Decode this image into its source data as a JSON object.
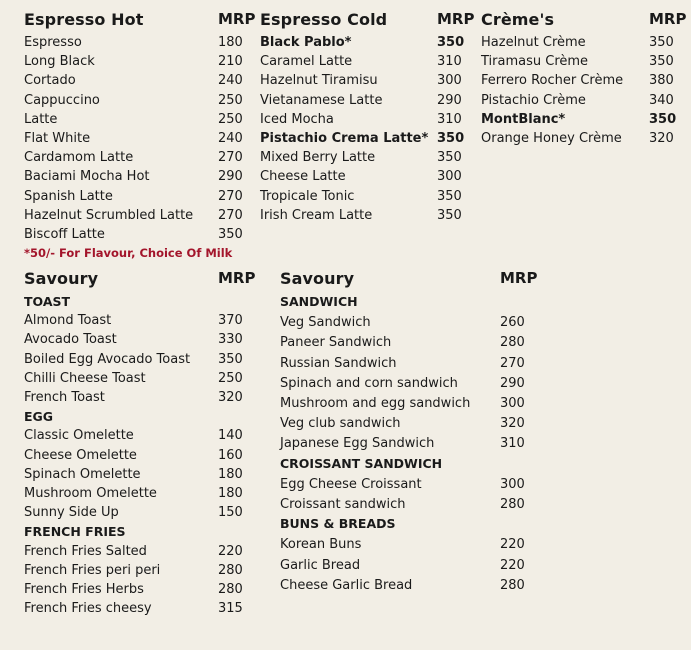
{
  "espresso_hot": {
    "title": "Espresso Hot",
    "mrp": "MRP",
    "items": [
      {
        "name": "Espresso",
        "price": "180"
      },
      {
        "name": "Long Black",
        "price": "210"
      },
      {
        "name": "Cortado",
        "price": "240"
      },
      {
        "name": "Cappuccino",
        "price": "250"
      },
      {
        "name": "Latte",
        "price": "250"
      },
      {
        "name": "Flat White",
        "price": "240"
      },
      {
        "name": "Cardamom Latte",
        "price": "270"
      },
      {
        "name": "Baciami Mocha Hot",
        "price": "290"
      },
      {
        "name": "Spanish Latte",
        "price": "270"
      },
      {
        "name": "Hazelnut Scrumbled Latte",
        "price": "270"
      },
      {
        "name": "Biscoff Latte",
        "price": "350"
      }
    ],
    "note": "*50/- For Flavour, Choice Of Milk"
  },
  "espresso_cold": {
    "title": "Espresso Cold",
    "mrp": "MRP",
    "items": [
      {
        "name": "Black Pablo*",
        "price": "350",
        "bold": true
      },
      {
        "name": "Caramel Latte",
        "price": "310"
      },
      {
        "name": "Hazelnut Tiramisu",
        "price": "300"
      },
      {
        "name": "Vietanamese Latte",
        "price": "290"
      },
      {
        "name": "Iced Mocha",
        "price": "310"
      },
      {
        "name": "Pistachio Crema Latte*",
        "price": "350",
        "bold": true
      },
      {
        "name": "Mixed Berry Latte",
        "price": "350"
      },
      {
        "name": "Cheese Latte",
        "price": "300"
      },
      {
        "name": "Tropicale Tonic",
        "price": "350"
      },
      {
        "name": "Irish Cream Latte",
        "price": "350"
      }
    ]
  },
  "cremes": {
    "title": "Crème's",
    "mrp": "MRP",
    "items": [
      {
        "name": "Hazelnut Crème",
        "price": "350"
      },
      {
        "name": "Tiramasu Crème",
        "price": "350"
      },
      {
        "name": "Ferrero Rocher Crème",
        "price": "380"
      },
      {
        "name": "Pistachio Crème",
        "price": "340"
      },
      {
        "name": "MontBlanc*",
        "price": "350",
        "bold": true
      },
      {
        "name": "Orange Honey Crème",
        "price": "320"
      }
    ]
  },
  "savoury_left": {
    "title": "Savoury",
    "mrp": "MRP",
    "groups": [
      {
        "heading": "TOAST",
        "items": [
          {
            "name": "Almond Toast",
            "price": "370"
          },
          {
            "name": "Avocado Toast",
            "price": "330"
          },
          {
            "name": "Boiled Egg Avocado Toast",
            "price": "350"
          },
          {
            "name": "Chilli Cheese Toast",
            "price": "250"
          },
          {
            "name": "French Toast",
            "price": "320"
          }
        ]
      },
      {
        "heading": "EGG",
        "items": [
          {
            "name": "Classic Omelette",
            "price": "140"
          },
          {
            "name": "Cheese Omelette",
            "price": "160"
          },
          {
            "name": "Spinach Omelette",
            "price": "180"
          },
          {
            "name": "Mushroom Omelette",
            "price": "180"
          },
          {
            "name": "Sunny Side Up",
            "price": "150"
          }
        ]
      },
      {
        "heading": "FRENCH FRIES",
        "items": [
          {
            "name": "French  Fries Salted",
            "price": "220"
          },
          {
            "name": "French  Fries  peri peri",
            "price": "280"
          },
          {
            "name": "French  Fries Herbs",
            "price": "280"
          },
          {
            "name": "French  Fries cheesy",
            "price": "315"
          }
        ]
      }
    ]
  },
  "savoury_right": {
    "title": "Savoury",
    "mrp": "MRP",
    "groups": [
      {
        "heading": "SANDWICH",
        "items": [
          {
            "name": "Veg Sandwich",
            "price": "260"
          },
          {
            "name": "Paneer Sandwich",
            "price": "280"
          },
          {
            "name": "Russian Sandwich",
            "price": "270"
          },
          {
            "name": "Spinach and corn sandwich",
            "price": "290"
          },
          {
            "name": "Mushroom and egg sandwich",
            "price": "300"
          },
          {
            "name": "Veg club sandwich",
            "price": "320"
          },
          {
            "name": "Japanese Egg Sandwich",
            "price": "310"
          }
        ]
      },
      {
        "heading": "CROISSANT SANDWICH",
        "items": [
          {
            "name": "Egg Cheese Croissant",
            "price": "300"
          },
          {
            "name": "Croissant sandwich",
            "price": "280"
          }
        ]
      },
      {
        "heading": "BUNS & BREADS",
        "items": [
          {
            "name": "Korean Buns",
            "price": "220"
          },
          {
            "name": "Garlic Bread",
            "price": "220"
          },
          {
            "name": "Cheese Garlic Bread",
            "price": "280"
          }
        ]
      }
    ]
  }
}
